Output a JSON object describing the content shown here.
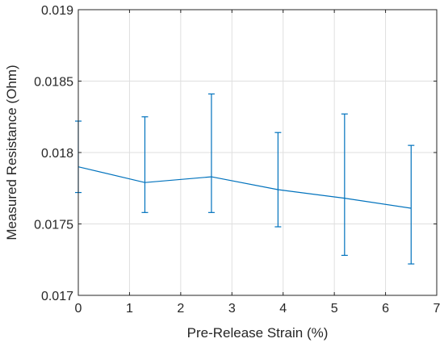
{
  "chart_data": {
    "type": "line",
    "xlabel": "Pre-Release Strain (%)",
    "ylabel": "Measured Resistance (Ohm)",
    "xlim": [
      0,
      7
    ],
    "ylim": [
      0.017,
      0.019
    ],
    "xticks": [
      0,
      1,
      2,
      3,
      4,
      5,
      6,
      7
    ],
    "xtick_labels": [
      "0",
      "1",
      "2",
      "3",
      "4",
      "5",
      "6",
      "7"
    ],
    "yticks": [
      0.017,
      0.0175,
      0.018,
      0.0185,
      0.019
    ],
    "ytick_labels": [
      "0.017",
      "0.0175",
      "0.018",
      "0.0185",
      "0.019"
    ],
    "grid": true,
    "series": [
      {
        "color": "#0072bd",
        "points": [
          {
            "x": 0.0,
            "y": 0.0179,
            "err_low": 0.01772,
            "err_high": 0.01822
          },
          {
            "x": 1.3,
            "y": 0.01779,
            "err_low": 0.01758,
            "err_high": 0.01825
          },
          {
            "x": 2.6,
            "y": 0.01783,
            "err_low": 0.01758,
            "err_high": 0.01841
          },
          {
            "x": 3.9,
            "y": 0.01774,
            "err_low": 0.01748,
            "err_high": 0.01814
          },
          {
            "x": 5.2,
            "y": 0.01768,
            "err_low": 0.01728,
            "err_high": 0.01827
          },
          {
            "x": 6.5,
            "y": 0.01761,
            "err_low": 0.01722,
            "err_high": 0.01805
          }
        ]
      }
    ]
  }
}
